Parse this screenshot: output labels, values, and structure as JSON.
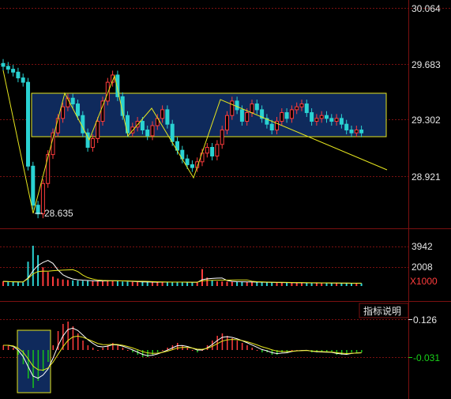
{
  "colors": {
    "background": "#000000",
    "grid": "#7a1010",
    "axis_text": "#e6e6e6",
    "axis_text_green": "#19d219",
    "up": "#ff3c3c",
    "down": "#2ad2d2",
    "trend": "#e6e61e",
    "box_fill": "#0f2a5c",
    "box_stroke": "#e6e61e",
    "macd_pos": "#ff3c3c",
    "macd_neg": "#19c219",
    "dif_line": "#ffffff",
    "dea_line": "#e6e61e"
  },
  "price_panel": {
    "y_ticks": [
      "30.064",
      "29.683",
      "29.302",
      "28.921"
    ],
    "low_marker": "28.635"
  },
  "volume_panel": {
    "y_ticks": [
      "3942",
      "2008"
    ],
    "unit_label": "X1000"
  },
  "macd_panel": {
    "button_label": "指标说明",
    "y_ticks": [
      "0.126",
      "-0.031"
    ]
  },
  "chart_data": [
    {
      "type": "candlestick",
      "ylim": [
        28.54,
        30.064
      ],
      "close": [
        29.66,
        29.64,
        29.62,
        29.58,
        29.55,
        28.97,
        28.7,
        28.64,
        28.85,
        29.05,
        29.2,
        29.3,
        29.38,
        29.44,
        29.4,
        29.32,
        29.2,
        29.1,
        29.16,
        29.28,
        29.42,
        29.55,
        29.6,
        29.45,
        29.32,
        29.2,
        29.24,
        29.28,
        29.22,
        29.18,
        29.25,
        29.3,
        29.36,
        29.26,
        29.14,
        29.08,
        29.02,
        28.98,
        28.96,
        29.0,
        29.06,
        29.1,
        29.04,
        29.12,
        29.22,
        29.32,
        29.42,
        29.36,
        29.28,
        29.34,
        29.4,
        29.36,
        29.3,
        29.26,
        29.22,
        29.28,
        29.34,
        29.3,
        29.36,
        29.38,
        29.4,
        29.34,
        29.28,
        29.3,
        29.32,
        29.3,
        29.28,
        29.3,
        29.26,
        29.22,
        29.2,
        29.22,
        29.2
      ]
    },
    {
      "type": "bar",
      "name": "volume",
      "values": [
        500,
        450,
        420,
        400,
        380,
        2600,
        4300,
        3300,
        2000,
        1500,
        1000,
        800,
        700,
        650,
        600,
        580,
        560,
        540,
        520,
        500,
        560,
        620,
        580,
        520,
        480,
        460,
        440,
        430,
        420,
        410,
        400,
        420,
        440,
        430,
        420,
        410,
        400,
        390,
        380,
        400,
        1800,
        900,
        600,
        500,
        480,
        460,
        450,
        440,
        430,
        420,
        410,
        400,
        390,
        380,
        370,
        360,
        360,
        350,
        350,
        340,
        340,
        330,
        330,
        320,
        320,
        310,
        310,
        300,
        300,
        300,
        290,
        290,
        280
      ]
    },
    {
      "type": "bar",
      "name": "macd",
      "values": [
        0.02,
        0.02,
        0.01,
        -0.02,
        -0.06,
        -0.12,
        -0.16,
        -0.13,
        -0.09,
        -0.05,
        0.02,
        0.08,
        0.11,
        0.12,
        0.1,
        0.07,
        0.04,
        0.02,
        0.01,
        0.0,
        0.01,
        0.02,
        0.03,
        0.02,
        0.01,
        0.0,
        -0.01,
        -0.02,
        -0.03,
        -0.03,
        -0.02,
        -0.01,
        0.0,
        0.01,
        0.02,
        0.03,
        0.02,
        0.01,
        0.0,
        -0.01,
        0.0,
        0.02,
        0.04,
        0.06,
        0.07,
        0.06,
        0.05,
        0.04,
        0.03,
        0.02,
        0.01,
        0.0,
        -0.01,
        -0.01,
        -0.02,
        -0.02,
        -0.01,
        -0.01,
        0.0,
        0.0,
        0.0,
        0.0,
        -0.01,
        -0.01,
        -0.01,
        -0.01,
        -0.01,
        -0.02,
        -0.02,
        -0.02,
        -0.01,
        -0.01,
        -0.01
      ]
    }
  ]
}
